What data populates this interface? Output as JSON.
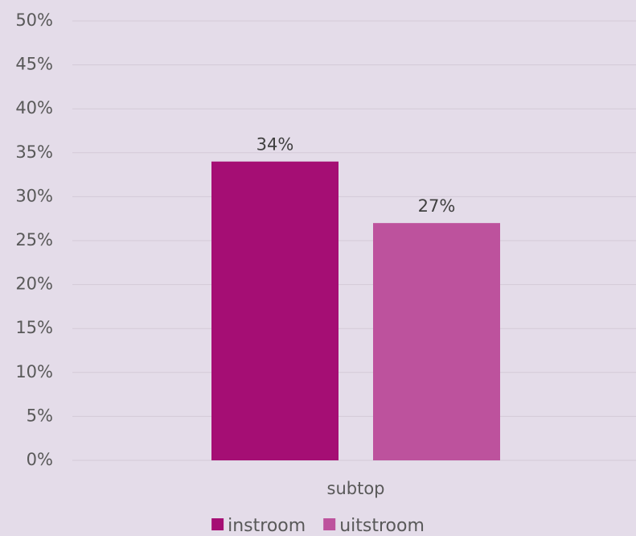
{
  "chart_data": {
    "type": "bar",
    "title": "",
    "xlabel": "",
    "ylabel": "",
    "categories": [
      "subtop"
    ],
    "series": [
      {
        "name": "instroom",
        "values": [
          34
        ],
        "labels": [
          "34%"
        ],
        "color": "#a50e74"
      },
      {
        "name": "uitstroom",
        "values": [
          27
        ],
        "labels": [
          "27%"
        ],
        "color": "#bd529d"
      }
    ],
    "ylim": [
      0,
      50
    ],
    "yticks": [
      0,
      5,
      10,
      15,
      20,
      25,
      30,
      35,
      40,
      45,
      50
    ],
    "ytick_labels": [
      "0%",
      "5%",
      "10%",
      "15%",
      "20%",
      "25%",
      "30%",
      "35%",
      "40%",
      "45%",
      "50%"
    ],
    "grid": true,
    "legend": "bottom-center",
    "colors": {
      "background": "#e4dce9",
      "gridline": "#d3cad8",
      "tick_text": "#595959",
      "data_label_text": "#404040"
    }
  }
}
